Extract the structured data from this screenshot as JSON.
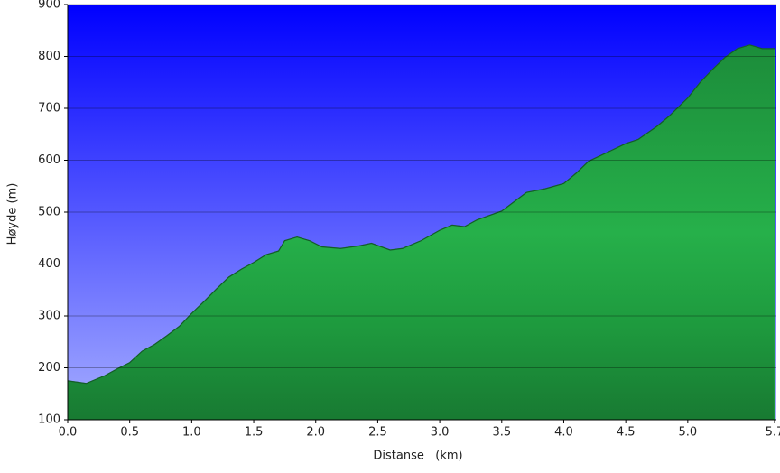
{
  "chart_data": {
    "type": "area",
    "xlabel": "Distanse   (km)",
    "ylabel": "Høyde (m)",
    "x": [
      0.0,
      0.15,
      0.3,
      0.4,
      0.5,
      0.6,
      0.7,
      0.8,
      0.9,
      1.0,
      1.1,
      1.2,
      1.3,
      1.4,
      1.5,
      1.6,
      1.7,
      1.75,
      1.85,
      1.95,
      2.05,
      2.2,
      2.35,
      2.45,
      2.6,
      2.7,
      2.85,
      3.0,
      3.1,
      3.2,
      3.3,
      3.5,
      3.6,
      3.7,
      3.85,
      4.0,
      4.1,
      4.2,
      4.35,
      4.5,
      4.6,
      4.75,
      4.85,
      5.0,
      5.1,
      5.2,
      5.3,
      5.4,
      5.5,
      5.6,
      5.7
    ],
    "y": [
      175,
      170,
      185,
      198,
      210,
      232,
      245,
      262,
      280,
      305,
      328,
      352,
      375,
      390,
      403,
      418,
      425,
      445,
      452,
      445,
      433,
      430,
      435,
      440,
      427,
      430,
      445,
      465,
      475,
      472,
      485,
      502,
      520,
      538,
      545,
      555,
      575,
      598,
      615,
      632,
      640,
      665,
      685,
      720,
      750,
      775,
      798,
      815,
      822,
      815,
      815
    ],
    "color": "#22aa44",
    "xlim": [
      0,
      5.7
    ],
    "ylim": [
      100,
      900
    ],
    "xticks": [
      {
        "value": 0,
        "label": "0.0"
      },
      0.5,
      {
        "value": 1,
        "label": "1.0"
      },
      1.5,
      {
        "value": 2,
        "label": "2.0"
      },
      2.5,
      {
        "value": 3,
        "label": "3.0"
      },
      3.5,
      {
        "value": 4,
        "label": "4.0"
      },
      4.5,
      {
        "value": 5,
        "label": "5.0"
      },
      5.7
    ],
    "yticks": [
      100,
      200,
      300,
      400,
      500,
      600,
      700,
      800,
      900
    ],
    "grid": true
  }
}
